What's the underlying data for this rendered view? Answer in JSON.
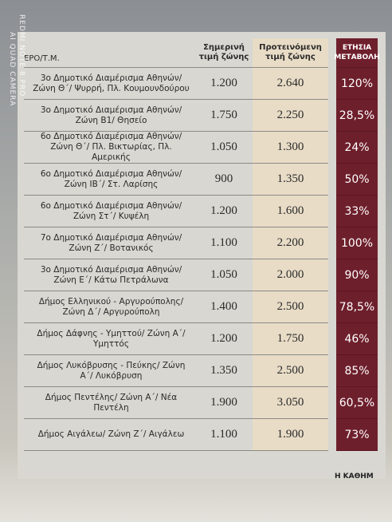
{
  "watermark": {
    "line1": "REDMI NOTE 8 PRO",
    "line2": "AI QUAD CAMERA"
  },
  "table": {
    "headers": [
      "ΕΡΟ/Τ.Μ.",
      "Σημερινή τιμή ζώνης",
      "Προτεινόμενη τιμή ζώνης",
      "ΕΤΗΣΙΑ ΜΕΤΑΒΟΛΗ"
    ],
    "rows": [
      [
        "3ο Δημοτικό Διαμέρισμα Αθηνών/ Ζώνη Θ΄/ Ψυρρή, Πλ. Κουμουνδούρου",
        "1.200",
        "2.640",
        "120%"
      ],
      [
        "3ο Δημοτικό Διαμέρισμα Αθηνών/ Ζώνη Β1/ Θησείο",
        "1.750",
        "2.250",
        "28,5%"
      ],
      [
        "6ο Δημοτικό Διαμέρισμα Αθηνών/ Ζώνη Θ΄/ Πλ. Βικτωρίας, Πλ. Αμερικής",
        "1.050",
        "1.300",
        "24%"
      ],
      [
        "6ο Δημοτικό Διαμέρισμα Αθηνών/ Ζώνη ΙΒ΄/ Στ. Λαρίσης",
        "900",
        "1.350",
        "50%"
      ],
      [
        "6ο Δημοτικό Διαμέρισμα Αθηνών/ Ζώνη Στ΄/ Κυψέλη",
        "1.200",
        "1.600",
        "33%"
      ],
      [
        "7ο Δημοτικό Διαμέρισμα Αθηνών/ Ζώνη Ζ΄/ Βοτανικός",
        "1.100",
        "2.200",
        "100%"
      ],
      [
        "3ο Δημοτικό Διαμέρισμα Αθηνών/ Ζώνη Ε΄/ Κάτω Πετράλωνα",
        "1.050",
        "2.000",
        "90%"
      ],
      [
        "Δήμος Ελληνικού - Αργυρούπολης/ Ζώνη Δ΄/ Αργυρούπολη",
        "1.400",
        "2.500",
        "78,5%"
      ],
      [
        "Δήμος Δάφνης - Υμηττού/ Ζώνη Α΄/ Υμηττός",
        "1.200",
        "1.750",
        "46%"
      ],
      [
        "Δήμος Λυκόβρυσης - Πεύκης/ Ζώνη Α΄/ Λυκόβρυση",
        "1.350",
        "2.500",
        "85%"
      ],
      [
        "Δήμος Πεντέλης/ Ζώνη Α΄/ Νέα Πεντέλη",
        "1.900",
        "3.050",
        "60,5%"
      ],
      [
        "Δήμος Αιγάλεω/ Ζώνη Ζ΄/ Αιγάλεω",
        "1.100",
        "1.900",
        "73%"
      ]
    ]
  },
  "footer": "Η ΚΑΘΗΜ"
}
